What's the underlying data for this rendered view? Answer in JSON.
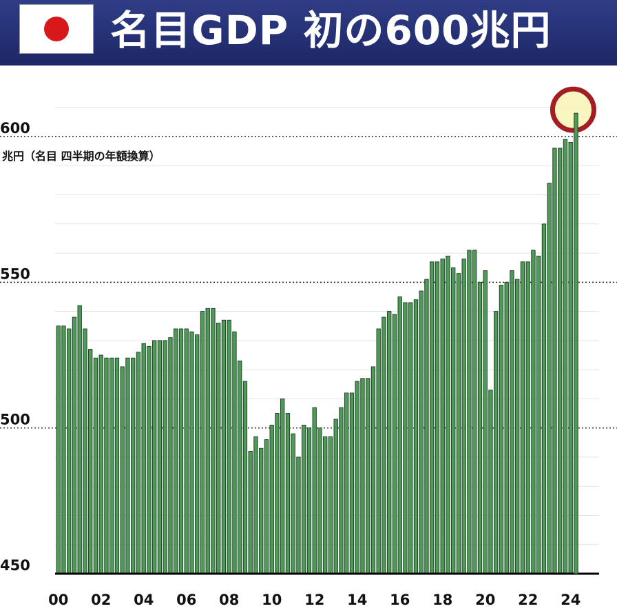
{
  "header": {
    "title": "名目GDP 初の600兆円",
    "flag_icon": "japan-flag-icon"
  },
  "chart_data": {
    "type": "bar",
    "title": "名目GDP 初の600兆円",
    "ylabel": "兆円（名目 四半期の年額換算）",
    "ylim": [
      450,
      610
    ],
    "yticks": [
      450,
      500,
      550,
      600
    ],
    "xtick_labels": [
      "00",
      "02",
      "04",
      "06",
      "08",
      "10",
      "12",
      "14",
      "16",
      "18",
      "20",
      "22",
      "24"
    ],
    "x_start": "2000 Q1",
    "x_end": "2024 Q2",
    "bar_color": "#4e9a58",
    "highlight_color": "#a31e22",
    "values": [
      535,
      535,
      534,
      538,
      542,
      534,
      527,
      524,
      525,
      524,
      524,
      524,
      521,
      524,
      524,
      526,
      529,
      528,
      530,
      530,
      530,
      531,
      534,
      534,
      534,
      533,
      532,
      540,
      541,
      541,
      536,
      537,
      537,
      533,
      523,
      516,
      492,
      497,
      493,
      496,
      501,
      505,
      510,
      505,
      498,
      490,
      501,
      500,
      507,
      500,
      497,
      497,
      503,
      507,
      512,
      512,
      516,
      517,
      517,
      521,
      534,
      538,
      540,
      539,
      545,
      543,
      543,
      544,
      547,
      551,
      557,
      557,
      558,
      559,
      555,
      553,
      558,
      561,
      561,
      550,
      554,
      513,
      540,
      549,
      550,
      554,
      551,
      557,
      557,
      561,
      559,
      570,
      584,
      596,
      596,
      599,
      598,
      608
    ]
  }
}
